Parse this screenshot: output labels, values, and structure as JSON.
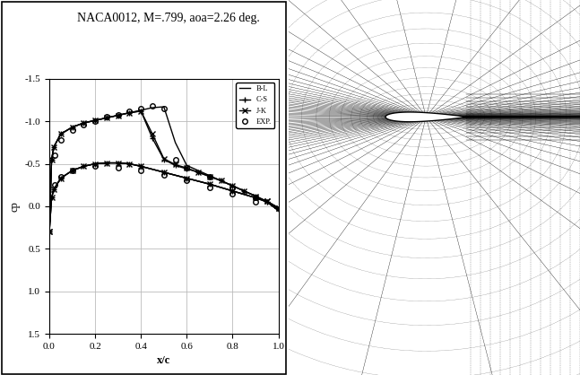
{
  "chart_data": {
    "type": "line",
    "title": "NACA0012, M=.799, aoa=2.26 deg.",
    "x_label": "x/c",
    "y_label": "cp",
    "xlim": [
      0.0,
      1.0
    ],
    "xticks": [
      0.0,
      0.2,
      0.4,
      0.6,
      0.8,
      1.0
    ],
    "ylim": [
      1.5,
      -1.5
    ],
    "yticks": [
      -1.5,
      -1.0,
      -0.5,
      0.0,
      0.5,
      1.0,
      1.5
    ],
    "grid": true,
    "legend": "upper right",
    "series": [
      {
        "name": "B-L",
        "color": "#000000",
        "marker": "none",
        "line_style": "solid",
        "x": [
          0,
          0.01,
          0.02,
          0.05,
          0.1,
          0.15,
          0.2,
          0.25,
          0.3,
          0.35,
          0.4,
          0.45,
          0.5,
          0.55,
          0.6,
          0.65,
          0.7,
          0.75,
          0.8,
          0.85,
          0.9,
          0.95,
          1.0,
          null,
          0,
          0.01,
          0.02,
          0.05,
          0.1,
          0.15,
          0.2,
          0.25,
          0.3,
          0.35,
          0.4,
          0.5,
          0.6,
          0.7,
          0.8,
          0.9,
          0.95,
          1.0
        ],
        "values": [
          0.3,
          -0.55,
          -0.7,
          -0.85,
          -0.93,
          -0.98,
          -1.01,
          -1.04,
          -1.07,
          -1.1,
          -1.13,
          -1.16,
          -1.17,
          -0.75,
          -0.48,
          -0.42,
          -0.36,
          -0.3,
          -0.24,
          -0.18,
          -0.12,
          -0.05,
          0.05,
          null,
          0.3,
          -0.1,
          -0.2,
          -0.33,
          -0.42,
          -0.47,
          -0.5,
          -0.51,
          -0.51,
          -0.5,
          -0.47,
          -0.4,
          -0.33,
          -0.26,
          -0.18,
          -0.1,
          -0.05,
          0.05
        ]
      },
      {
        "name": "C-S",
        "color": "#000000",
        "marker": "plus",
        "line_style": "solid",
        "x": [
          0,
          0.01,
          0.02,
          0.05,
          0.1,
          0.15,
          0.2,
          0.25,
          0.3,
          0.35,
          0.4,
          0.45,
          0.5,
          0.55,
          0.6,
          0.65,
          0.7,
          0.75,
          0.8,
          0.85,
          0.9,
          0.95,
          1.0,
          null,
          0,
          0.01,
          0.02,
          0.05,
          0.1,
          0.15,
          0.2,
          0.25,
          0.3,
          0.35,
          0.4,
          0.5,
          0.6,
          0.7,
          0.8,
          0.9,
          0.95,
          1.0
        ],
        "values": [
          0.3,
          -0.55,
          -0.7,
          -0.85,
          -0.93,
          -0.98,
          -1.01,
          -1.04,
          -1.07,
          -1.1,
          -1.12,
          -0.8,
          -0.55,
          -0.48,
          -0.44,
          -0.4,
          -0.35,
          -0.3,
          -0.24,
          -0.18,
          -0.12,
          -0.05,
          0.03,
          null,
          0.3,
          -0.1,
          -0.2,
          -0.33,
          -0.42,
          -0.47,
          -0.5,
          -0.51,
          -0.51,
          -0.5,
          -0.47,
          -0.4,
          -0.33,
          -0.26,
          -0.18,
          -0.1,
          -0.05,
          0.03
        ]
      },
      {
        "name": "J-K",
        "color": "#000000",
        "marker": "x",
        "line_style": "solid",
        "x": [
          0,
          0.01,
          0.02,
          0.05,
          0.1,
          0.15,
          0.2,
          0.25,
          0.3,
          0.35,
          0.4,
          0.45,
          0.5,
          0.55,
          0.6,
          0.65,
          0.7,
          0.75,
          0.8,
          0.85,
          0.9,
          0.95,
          1.0,
          null,
          0,
          0.01,
          0.02,
          0.05,
          0.1,
          0.15,
          0.2,
          0.25,
          0.3,
          0.35,
          0.4,
          0.5,
          0.6,
          0.7,
          0.8,
          0.9,
          0.95,
          1.0
        ],
        "values": [
          0.3,
          -0.55,
          -0.7,
          -0.85,
          -0.93,
          -0.98,
          -1.01,
          -1.04,
          -1.07,
          -1.1,
          -1.12,
          -0.85,
          -0.56,
          -0.49,
          -0.45,
          -0.4,
          -0.35,
          -0.3,
          -0.24,
          -0.18,
          -0.12,
          -0.06,
          0.02,
          null,
          0.3,
          -0.1,
          -0.2,
          -0.33,
          -0.42,
          -0.47,
          -0.5,
          -0.51,
          -0.51,
          -0.5,
          -0.47,
          -0.4,
          -0.33,
          -0.26,
          -0.18,
          -0.1,
          -0.06,
          0.02
        ]
      },
      {
        "name": "EXP.",
        "color": "#000000",
        "marker": "circle",
        "line_style": "none",
        "x": [
          0.025,
          0.05,
          0.1,
          0.15,
          0.2,
          0.25,
          0.3,
          0.35,
          0.4,
          0.45,
          0.5,
          0.55,
          0.6,
          0.7,
          0.8,
          0.9,
          null,
          0.025,
          0.05,
          0.1,
          0.2,
          0.3,
          0.4,
          0.5,
          0.6,
          0.7,
          0.8,
          0.9
        ],
        "values": [
          -0.6,
          -0.78,
          -0.9,
          -0.96,
          -1.0,
          -1.05,
          -1.08,
          -1.12,
          -1.15,
          -1.18,
          -1.15,
          -0.55,
          -0.45,
          -0.35,
          -0.22,
          -0.1,
          null,
          -0.25,
          -0.35,
          -0.42,
          -0.47,
          -0.45,
          -0.42,
          -0.37,
          -0.3,
          -0.22,
          -0.15,
          -0.05
        ]
      }
    ]
  }
}
